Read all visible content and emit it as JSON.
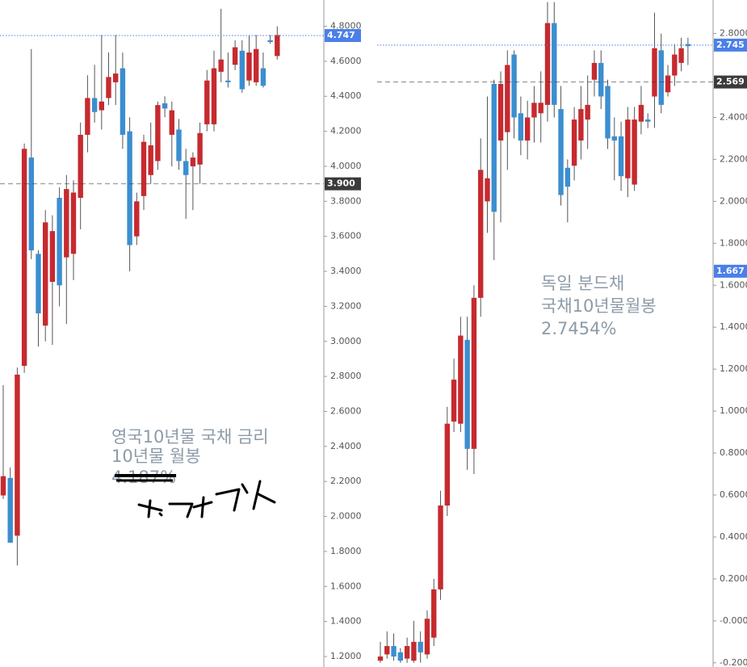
{
  "chart_data": [
    {
      "type": "candlestick",
      "ylim": [
        1.14,
        4.95
      ],
      "yticks": [
        {
          "value": 1.2,
          "label": "1.2000"
        },
        {
          "value": 1.4,
          "label": "1.4000"
        },
        {
          "value": 1.6,
          "label": "1.6000"
        },
        {
          "value": 1.8,
          "label": "1.8000"
        },
        {
          "value": 2.0,
          "label": "2.0000"
        },
        {
          "value": 2.2,
          "label": "2.2000"
        },
        {
          "value": 2.4,
          "label": "2.4000"
        },
        {
          "value": 2.6,
          "label": "2.6000"
        },
        {
          "value": 2.8,
          "label": "2.8000"
        },
        {
          "value": 3.0,
          "label": "3.0000"
        },
        {
          "value": 3.2,
          "label": "3.2000"
        },
        {
          "value": 3.4,
          "label": "3.4000"
        },
        {
          "value": 3.6,
          "label": "3.6000"
        },
        {
          "value": 3.8,
          "label": "3.8000"
        },
        {
          "value": 4.0,
          "label": "4.0000"
        },
        {
          "value": 4.2,
          "label": "4.2000"
        },
        {
          "value": 4.4,
          "label": "4.4000"
        },
        {
          "value": 4.6,
          "label": "4.6000"
        },
        {
          "value": 4.8,
          "label": "4.8000"
        }
      ],
      "up_color": "#c62a2f",
      "down_color": "#3b8ed0",
      "wick_color": "#555555",
      "open": [
        2.12,
        2.22,
        1.89,
        2.86,
        4.05,
        3.5,
        3.09,
        3.34,
        3.82,
        3.48,
        3.5,
        3.82,
        4.18,
        4.39,
        4.32,
        4.39,
        4.48,
        4.56,
        4.2,
        3.6,
        3.83,
        3.95,
        4.03,
        4.36,
        4.18,
        4.21,
        4.03,
        4.0,
        4.01,
        4.24,
        4.24,
        4.54,
        4.49,
        4.58,
        4.66,
        4.49,
        4.48,
        4.56,
        4.72,
        4.63
      ],
      "high": [
        2.75,
        2.28,
        2.85,
        4.13,
        4.67,
        3.52,
        3.75,
        3.72,
        3.88,
        3.95,
        3.92,
        4.25,
        4.52,
        4.58,
        4.75,
        4.65,
        4.75,
        4.65,
        4.28,
        3.85,
        4.18,
        4.25,
        4.37,
        4.4,
        4.37,
        4.27,
        4.1,
        4.08,
        4.25,
        4.55,
        4.66,
        4.9,
        4.65,
        4.72,
        4.72,
        4.75,
        4.75,
        4.65,
        4.75,
        4.8
      ],
      "low": [
        2.1,
        1.85,
        1.72,
        2.82,
        3.47,
        2.97,
        3.0,
        2.98,
        3.2,
        3.1,
        3.35,
        3.64,
        4.08,
        4.25,
        4.21,
        4.35,
        4.35,
        4.1,
        3.4,
        3.55,
        3.75,
        3.9,
        3.98,
        4.28,
        4.0,
        3.98,
        3.7,
        3.75,
        3.9,
        4.2,
        4.2,
        4.48,
        4.45,
        4.55,
        4.42,
        4.46,
        4.46,
        4.45,
        4.7,
        4.61
      ],
      "close": [
        2.23,
        1.85,
        2.81,
        4.1,
        3.52,
        3.16,
        3.68,
        3.63,
        3.32,
        3.87,
        3.85,
        4.18,
        4.39,
        4.31,
        4.37,
        4.51,
        4.53,
        4.18,
        3.55,
        3.8,
        4.14,
        4.12,
        4.35,
        4.33,
        4.32,
        4.03,
        3.95,
        4.05,
        4.19,
        4.49,
        4.56,
        4.61,
        4.48,
        4.68,
        4.44,
        4.65,
        4.67,
        4.46,
        4.71,
        4.75
      ],
      "price_lines": [
        {
          "value": 4.747,
          "label": "4.747",
          "color": "#4a80e8",
          "line": "dotted"
        },
        {
          "value": 3.9,
          "label": "3.900",
          "color": "#3a3a3a",
          "line": "dashed"
        }
      ],
      "annotations": [
        {
          "text": "영국10년물 국채 금리"
        },
        {
          "text": "10년물 월봉"
        },
        {
          "text": "4.187%",
          "strike": true
        }
      ]
    },
    {
      "type": "candlestick",
      "ylim": [
        -0.22,
        2.96
      ],
      "yticks": [
        {
          "value": -0.2,
          "label": "-0.2000"
        },
        {
          "value": 0,
          "label": "-0.0000"
        },
        {
          "value": 0.2,
          "label": "0.2000"
        },
        {
          "value": 0.4,
          "label": "0.4000"
        },
        {
          "value": 0.6,
          "label": "0.6000"
        },
        {
          "value": 0.8,
          "label": "0.8000"
        },
        {
          "value": 1.0,
          "label": "1.0000"
        },
        {
          "value": 1.2,
          "label": "1.2000"
        },
        {
          "value": 1.4,
          "label": "1.4000"
        },
        {
          "value": 1.6,
          "label": "1.6000"
        },
        {
          "value": 1.8,
          "label": "1.8000"
        },
        {
          "value": 2.0,
          "label": "2.0000"
        },
        {
          "value": 2.2,
          "label": "2.2000"
        },
        {
          "value": 2.4,
          "label": "2.4000"
        },
        {
          "value": 2.8,
          "label": "2.8000"
        }
      ],
      "up_color": "#c62a2f",
      "down_color": "#3b8ed0",
      "wick_color": "#555555",
      "open": [
        -0.19,
        -0.16,
        -0.12,
        -0.15,
        -0.18,
        -0.19,
        -0.1,
        -0.16,
        -0.08,
        0.15,
        0.55,
        0.95,
        0.94,
        1.34,
        0.82,
        1.54,
        2.0,
        2.56,
        2.29,
        2.33,
        2.7,
        2.42,
        2.29,
        2.4,
        2.42,
        2.46,
        2.85,
        2.44,
        2.16,
        2.17,
        2.29,
        2.39,
        2.58,
        2.66,
        2.55,
        2.31,
        2.31,
        2.11,
        2.08,
        2.38,
        2.39,
        2.5,
        2.72,
        2.52,
        2.6,
        2.66,
        2.75
      ],
      "high": [
        -0.1,
        -0.05,
        -0.06,
        -0.13,
        -0.08,
        0.0,
        -0.05,
        0.05,
        0.2,
        0.62,
        1.02,
        1.25,
        1.45,
        1.45,
        1.6,
        2.3,
        2.5,
        2.58,
        2.62,
        2.72,
        2.72,
        2.5,
        2.48,
        2.55,
        2.62,
        2.95,
        2.95,
        2.55,
        2.2,
        2.45,
        2.55,
        2.6,
        2.72,
        2.72,
        2.58,
        2.4,
        2.38,
        2.45,
        2.45,
        2.55,
        2.42,
        2.9,
        2.8,
        2.65,
        2.75,
        2.78,
        2.78
      ],
      "low": [
        -0.2,
        -0.18,
        -0.19,
        -0.2,
        -0.2,
        -0.2,
        -0.2,
        -0.18,
        -0.12,
        0.1,
        0.5,
        0.9,
        0.9,
        0.72,
        0.7,
        1.45,
        1.85,
        1.72,
        1.9,
        2.15,
        2.3,
        2.22,
        2.2,
        2.28,
        2.28,
        2.38,
        2.4,
        1.98,
        1.9,
        2.1,
        2.2,
        2.25,
        2.5,
        2.44,
        2.25,
        2.1,
        2.05,
        2.02,
        2.05,
        2.32,
        2.35,
        2.35,
        2.42,
        2.5,
        2.55,
        2.62,
        2.65
      ],
      "close": [
        -0.17,
        -0.12,
        -0.17,
        -0.19,
        -0.12,
        -0.1,
        -0.15,
        0.01,
        0.15,
        0.55,
        0.94,
        1.15,
        1.36,
        0.82,
        1.54,
        2.15,
        2.11,
        1.95,
        2.56,
        2.65,
        2.4,
        2.29,
        2.4,
        2.47,
        2.47,
        2.85,
        2.46,
        2.03,
        2.07,
        2.39,
        2.44,
        2.46,
        2.66,
        2.5,
        2.3,
        2.29,
        2.12,
        2.39,
        2.39,
        2.46,
        2.38,
        2.73,
        2.46,
        2.6,
        2.7,
        2.73,
        2.74
      ],
      "price_lines": [
        {
          "value": 2.745,
          "label": "2.745",
          "color": "#4a80e8",
          "line": "dotted"
        },
        {
          "value": 2.569,
          "label": "2.569",
          "color": "#3a3a3a",
          "line": "dashed"
        },
        {
          "value": 1.667,
          "label": "1.667",
          "color": "#4a80e8"
        }
      ],
      "annotations": [
        {
          "text": "독일 분드채"
        },
        {
          "text": "국채10년물월봉"
        },
        {
          "text": "2.7454%"
        }
      ]
    }
  ]
}
